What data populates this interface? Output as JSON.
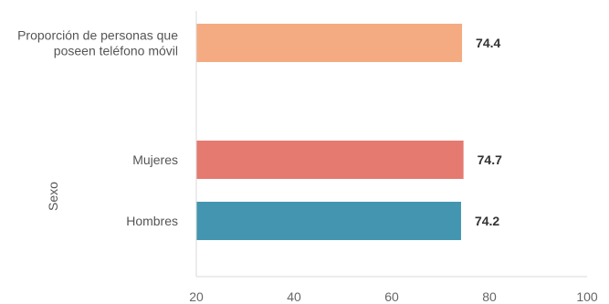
{
  "chart_data": {
    "type": "bar",
    "orientation": "horizontal",
    "title": "",
    "xlabel": "",
    "ylabel": "Sexo",
    "xlim": [
      20,
      100
    ],
    "xticks": [
      20,
      40,
      60,
      80,
      100
    ],
    "grid": false,
    "categories": [
      [
        "Proporción de personas que",
        "poseen teléfono móvil"
      ],
      [
        "Mujeres"
      ],
      [
        "Hombres"
      ]
    ],
    "values": [
      74.4,
      74.7,
      74.2
    ],
    "value_labels": [
      "74.4",
      "74.7",
      "74.2"
    ],
    "colors": [
      "#f5ab82",
      "#e57a71",
      "#4496b0"
    ],
    "axis_color": "#d9d9d9"
  }
}
